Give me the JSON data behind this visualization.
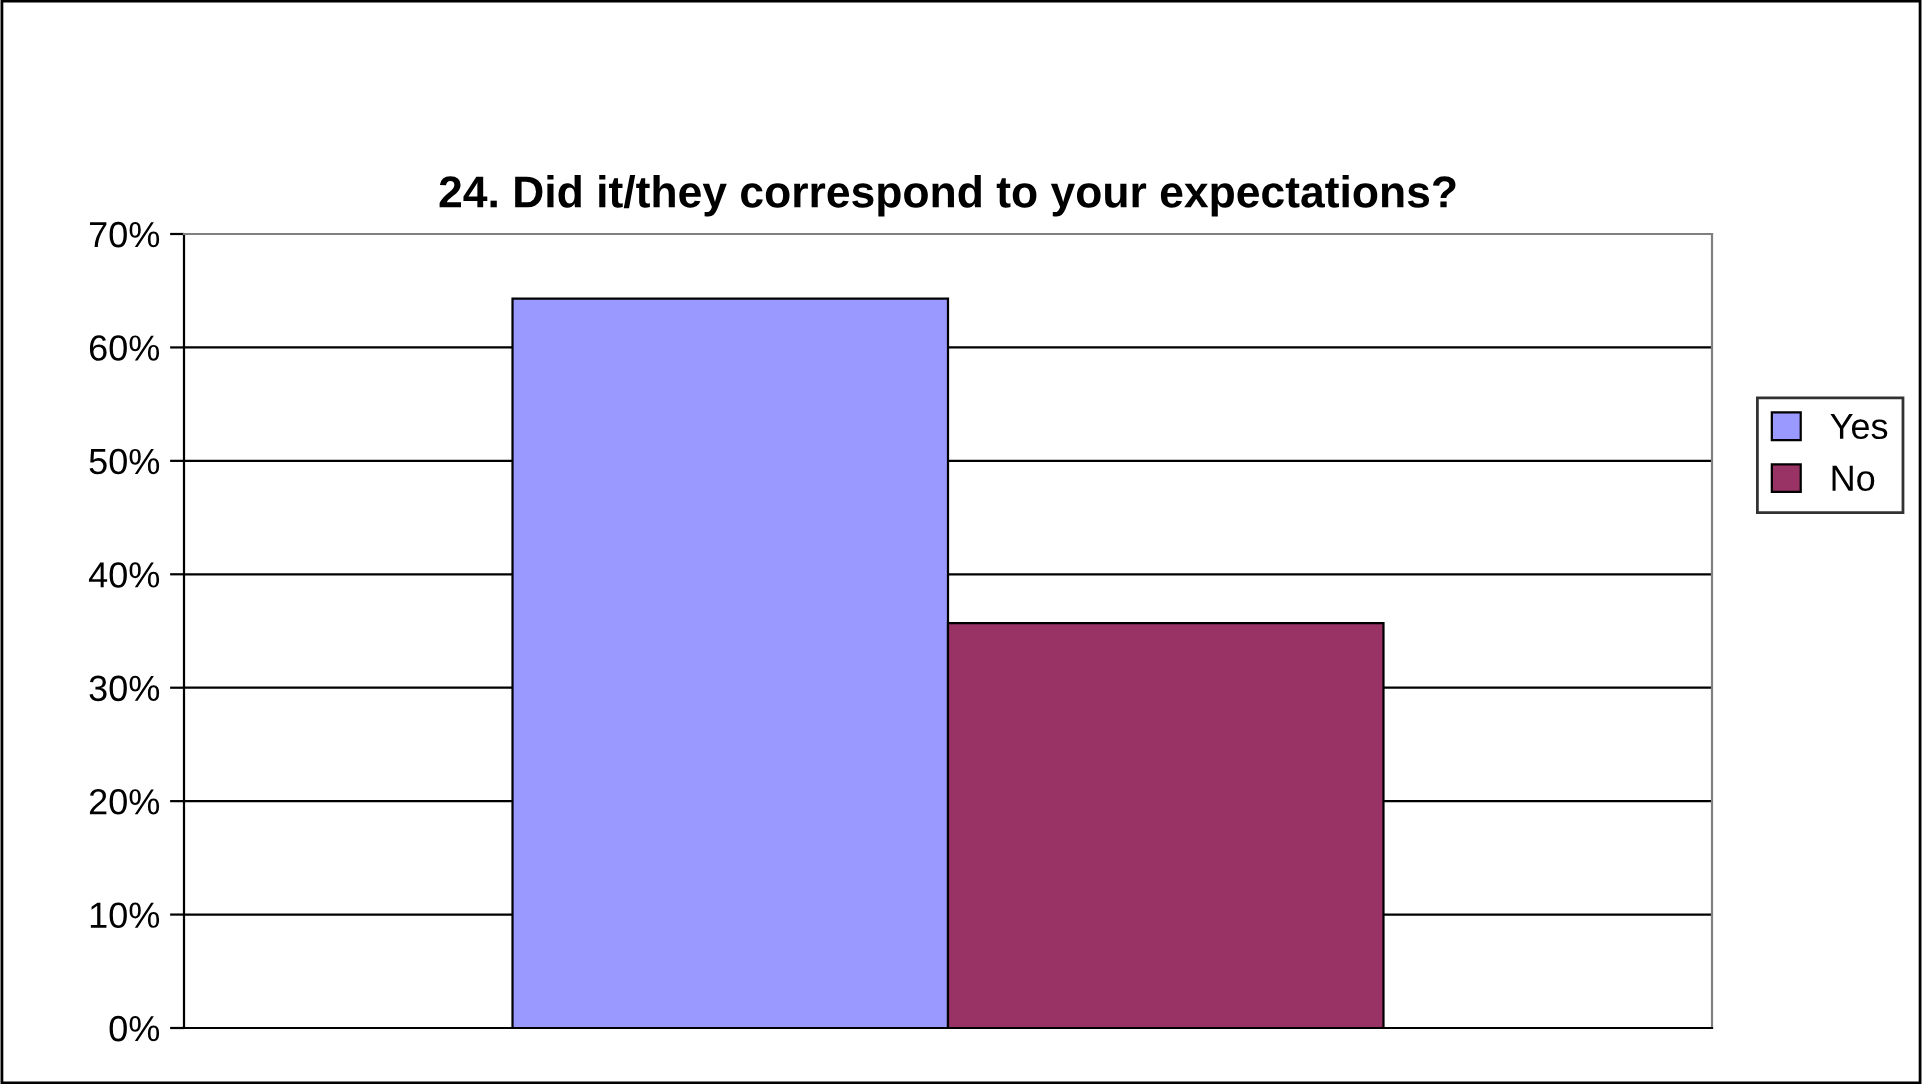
{
  "chart_data": {
    "type": "bar",
    "title": "24. Did it/they correspond to your expectations?",
    "categories": [
      null
    ],
    "series": [
      {
        "name": "Yes",
        "color": "#9999ff",
        "values": [
          64.3
        ]
      },
      {
        "name": "No",
        "color": "#993366",
        "values": [
          35.7
        ]
      }
    ],
    "ylim": [
      0,
      70
    ],
    "yticks": [
      {
        "value": 0,
        "label": "0%"
      },
      {
        "value": 10,
        "label": "10%"
      },
      {
        "value": 20,
        "label": "20%"
      },
      {
        "value": 30,
        "label": "30%"
      },
      {
        "value": 40,
        "label": "40%"
      },
      {
        "value": 50,
        "label": "50%"
      },
      {
        "value": 60,
        "label": "60%"
      },
      {
        "value": 70,
        "label": "70%"
      }
    ],
    "grid": "y",
    "legend": "right"
  }
}
